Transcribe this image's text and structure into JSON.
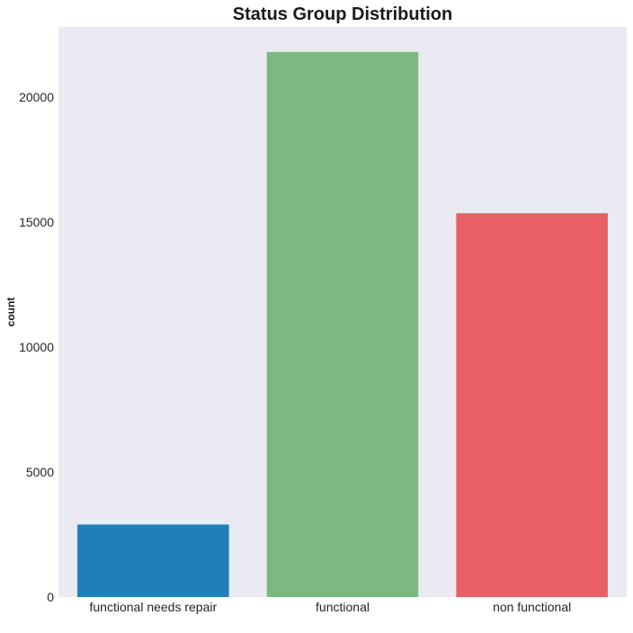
{
  "chart_data": {
    "type": "bar",
    "title": "Status Group Distribution",
    "xlabel": "",
    "ylabel": "count",
    "categories": [
      "functional needs repair",
      "functional",
      "non functional"
    ],
    "values": [
      2900,
      21800,
      15350
    ],
    "colors": [
      "#1f7fbb",
      "#7bb980",
      "#e86065"
    ],
    "ylim": [
      0,
      22800
    ],
    "yticks": [
      0,
      5000,
      10000,
      15000,
      20000
    ],
    "ytick_labels": [
      "0",
      "5000",
      "10000",
      "15000",
      "20000"
    ],
    "grid": false,
    "legend": "none",
    "plot_background": "#eaeaf2"
  }
}
